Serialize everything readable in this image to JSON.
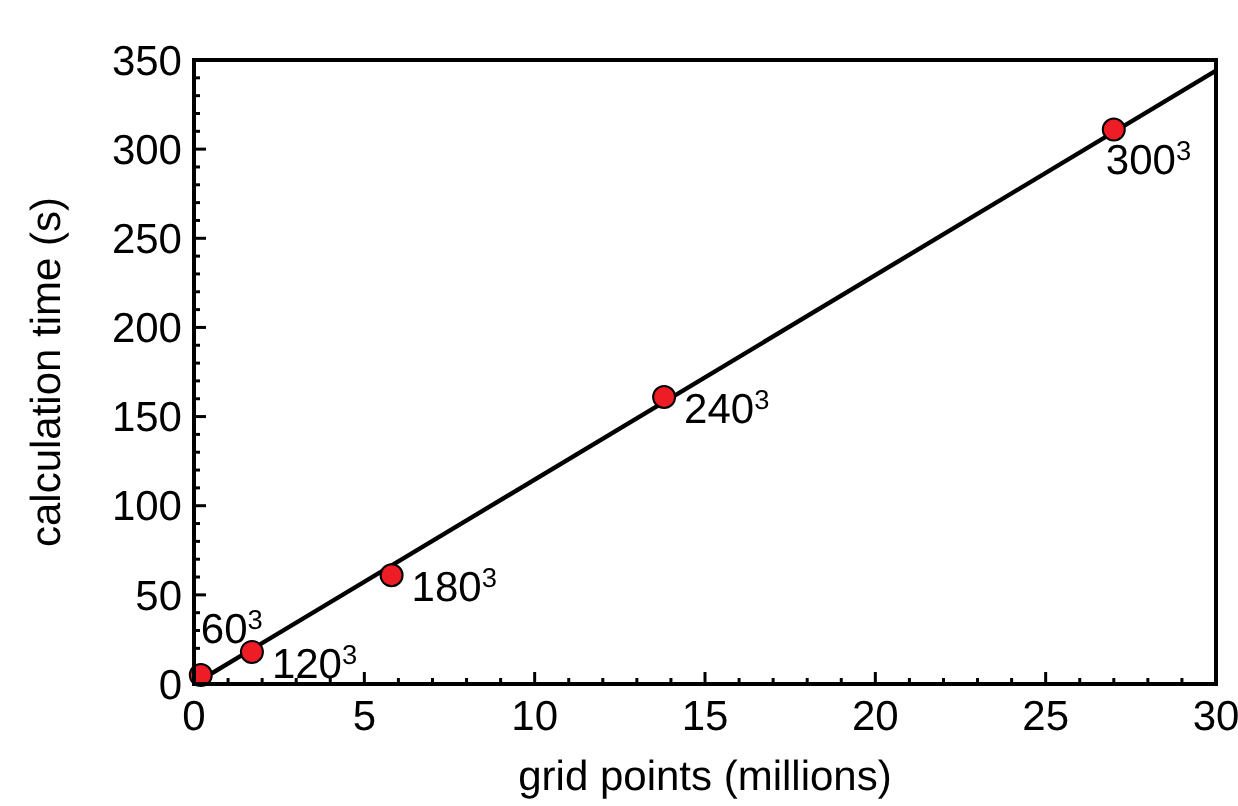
{
  "chart_data": {
    "type": "scatter",
    "xlabel": "grid points (millions)",
    "ylabel": "calculation time (s)",
    "xlim": [
      0,
      30
    ],
    "ylim": [
      0,
      350
    ],
    "xticks": [
      0,
      {
        "value": 1,
        "label": null
      },
      {
        "value": 2,
        "label": null
      },
      {
        "value": 3,
        "label": null
      },
      {
        "value": 4,
        "label": null
      },
      5,
      {
        "value": 6,
        "label": null
      },
      {
        "value": 7,
        "label": null
      },
      {
        "value": 8,
        "label": null
      },
      {
        "value": 9,
        "label": null
      },
      10,
      {
        "value": 11,
        "label": null
      },
      {
        "value": 12,
        "label": null
      },
      {
        "value": 13,
        "label": null
      },
      {
        "value": 14,
        "label": null
      },
      15,
      {
        "value": 16,
        "label": null
      },
      {
        "value": 17,
        "label": null
      },
      {
        "value": 18,
        "label": null
      },
      {
        "value": 19,
        "label": null
      },
      20,
      {
        "value": 21,
        "label": null
      },
      {
        "value": 22,
        "label": null
      },
      {
        "value": 23,
        "label": null
      },
      {
        "value": 24,
        "label": null
      },
      25,
      {
        "value": 26,
        "label": null
      },
      {
        "value": 27,
        "label": null
      },
      {
        "value": 28,
        "label": null
      },
      {
        "value": 29,
        "label": null
      },
      30
    ],
    "yticks": [
      0,
      {
        "value": 10,
        "label": null
      },
      {
        "value": 20,
        "label": null
      },
      {
        "value": 30,
        "label": null
      },
      {
        "value": 40,
        "label": null
      },
      50,
      {
        "value": 60,
        "label": null
      },
      {
        "value": 70,
        "label": null
      },
      {
        "value": 80,
        "label": null
      },
      {
        "value": 90,
        "label": null
      },
      100,
      {
        "value": 110,
        "label": null
      },
      {
        "value": 120,
        "label": null
      },
      {
        "value": 130,
        "label": null
      },
      {
        "value": 140,
        "label": null
      },
      150,
      {
        "value": 160,
        "label": null
      },
      {
        "value": 170,
        "label": null
      },
      {
        "value": 180,
        "label": null
      },
      {
        "value": 190,
        "label": null
      },
      200,
      {
        "value": 210,
        "label": null
      },
      {
        "value": 220,
        "label": null
      },
      {
        "value": 230,
        "label": null
      },
      {
        "value": 240,
        "label": null
      },
      250,
      {
        "value": 260,
        "label": null
      },
      {
        "value": 270,
        "label": null
      },
      {
        "value": 280,
        "label": null
      },
      {
        "value": 290,
        "label": null
      },
      300,
      {
        "value": 310,
        "label": null
      },
      {
        "value": 320,
        "label": null
      },
      {
        "value": 330,
        "label": null
      },
      {
        "value": 340,
        "label": null
      },
      350
    ],
    "series": [
      {
        "type": "line",
        "color": "#000000",
        "marker": "none",
        "x": [
          0,
          30
        ],
        "values": [
          0,
          344
        ]
      },
      {
        "color": "#ee1c24",
        "marker": "circle",
        "x": [
          0.2,
          1.7,
          5.8,
          13.8,
          27
        ],
        "values": [
          5,
          18,
          61,
          161,
          311
        ]
      }
    ],
    "annotations": [
      {
        "text": "60$^{3}$",
        "x": 0.2,
        "y": 5
      },
      {
        "text": "120$^{3}$",
        "x": 1.7,
        "y": 18
      },
      {
        "text": "180$^{3}$",
        "x": 5.8,
        "y": 61
      },
      {
        "text": "240$^{3}$",
        "x": 13.8,
        "y": 161
      },
      {
        "text": "300$^{3}$",
        "x": 27,
        "y": 311
      }
    ]
  }
}
